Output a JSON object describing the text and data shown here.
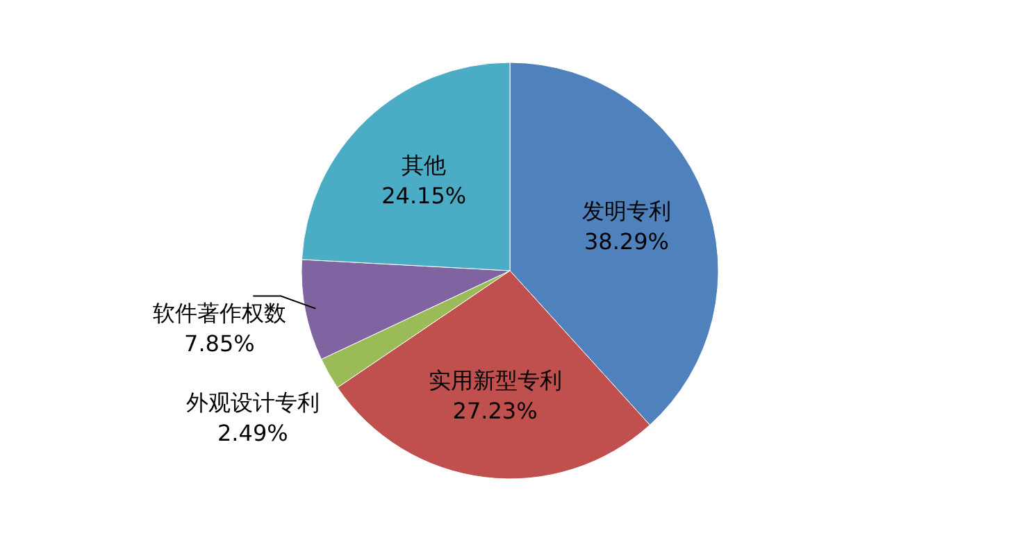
{
  "chart_data": {
    "type": "pie",
    "categories": [
      "发明专利",
      "实用新型专利",
      "外观设计专利",
      "软件著作权数",
      "其他"
    ],
    "values": [
      38.29,
      27.23,
      2.49,
      7.85,
      24.15
    ],
    "colors": [
      "#4f81bd",
      "#c0504d",
      "#9bbb59",
      "#8064a2",
      "#4bacc6"
    ],
    "value_labels": [
      "38.29%",
      "27.23%",
      "2.49%",
      "7.85%",
      "24.15%"
    ]
  }
}
